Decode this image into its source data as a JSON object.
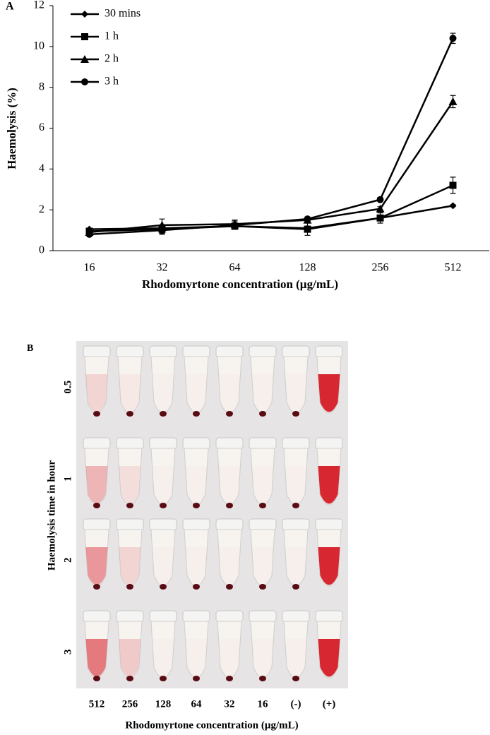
{
  "chart_data": {
    "type": "line",
    "panel": "A",
    "x_label": "Rhodomyrtone concentration (µg/mL)",
    "y_label": "Haemolysis (%)",
    "categories": [
      "16",
      "32",
      "64",
      "128",
      "256",
      "512"
    ],
    "ylim": [
      0,
      12
    ],
    "yticks": [
      0,
      2,
      4,
      6,
      8,
      10,
      12
    ],
    "grid": false,
    "legend": "upper left",
    "series": [
      {
        "name": "30 mins",
        "color": "#000000",
        "marker": "diamond",
        "values": [
          1.05,
          1.1,
          1.2,
          1.1,
          1.6,
          2.2
        ],
        "errors": [
          0.05,
          0.1,
          0.1,
          0.1,
          0.1,
          0.05
        ]
      },
      {
        "name": "1 h",
        "color": "#000000",
        "marker": "square",
        "values": [
          0.95,
          1.05,
          1.2,
          1.05,
          1.6,
          3.2
        ],
        "errors": [
          0.1,
          0.2,
          0.15,
          0.3,
          0.25,
          0.4
        ]
      },
      {
        "name": "2 h",
        "color": "#000000",
        "marker": "triangle",
        "values": [
          0.9,
          1.25,
          1.3,
          1.5,
          2.05,
          7.3
        ],
        "errors": [
          0.1,
          0.3,
          0.2,
          0.1,
          0.1,
          0.3
        ]
      },
      {
        "name": "3 h",
        "color": "#000000",
        "marker": "circle",
        "values": [
          0.8,
          1.0,
          1.25,
          1.55,
          2.5,
          10.4
        ],
        "errors": [
          0.05,
          0.2,
          0.2,
          0.1,
          0.1,
          0.25
        ]
      }
    ]
  },
  "photo": {
    "panel": "B",
    "y_label": "Haemolysis time in hour",
    "rows": [
      "0.5",
      "1",
      "2",
      "3"
    ],
    "columns": [
      "512",
      "256",
      "128",
      "64",
      "32",
      "16",
      "(-)",
      "(+)"
    ],
    "x_label": "Rhodomyrtone concentration (µg/mL)"
  }
}
